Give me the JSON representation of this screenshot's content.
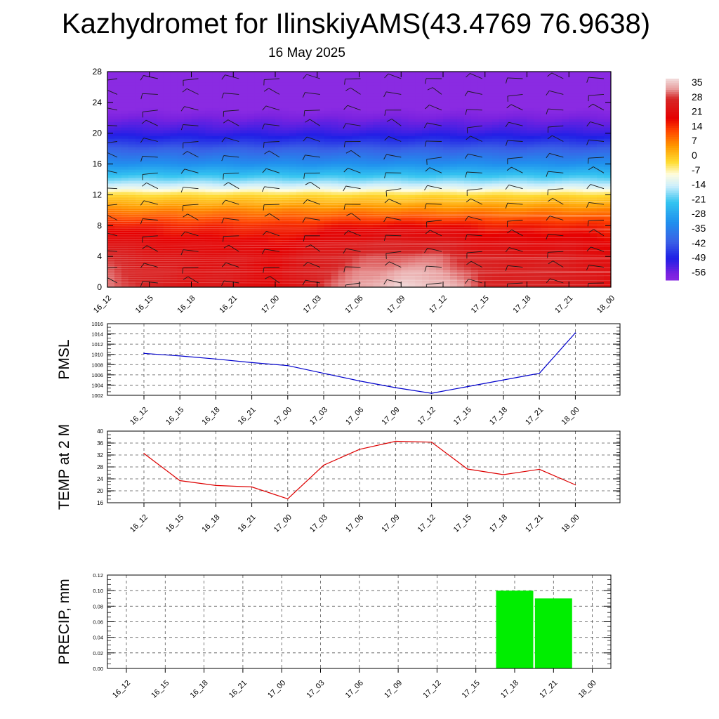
{
  "title": "Kazhydromet for IlinskiyAMS(43.4769 76.9638)",
  "subtitle": "16 May 2025",
  "chart_data": [
    {
      "type": "heatmap",
      "name": "temperature-wind-cross-section",
      "xlabel": "",
      "ylabel": "",
      "x_ticks": [
        "16_12",
        "16_15",
        "16_18",
        "16_21",
        "17_00",
        "17_03",
        "17_06",
        "17_09",
        "17_12",
        "17_15",
        "17_18",
        "17_21",
        "18_00"
      ],
      "y_ticks": [
        0,
        4,
        8,
        12,
        16,
        20,
        24,
        28
      ],
      "ylim": [
        0,
        28
      ],
      "colorbar_labels": [
        35,
        28,
        21,
        14,
        7,
        0,
        -7,
        -14,
        -21,
        -28,
        -35,
        -42,
        -49,
        -56
      ],
      "color_stops": [
        {
          "value": 38,
          "color": "#f2dede"
        },
        {
          "value": 33,
          "color": "#e8a0a0"
        },
        {
          "value": 28,
          "color": "#d62828"
        },
        {
          "value": 18,
          "color": "#e60000"
        },
        {
          "value": 12,
          "color": "#ff4400"
        },
        {
          "value": 4,
          "color": "#ff9900"
        },
        {
          "value": -4,
          "color": "#ffdd33"
        },
        {
          "value": -10,
          "color": "#fffde0"
        },
        {
          "value": -16,
          "color": "#cceefc"
        },
        {
          "value": -24,
          "color": "#33c4f0"
        },
        {
          "value": -34,
          "color": "#2090ee"
        },
        {
          "value": -44,
          "color": "#3a5fe6"
        },
        {
          "value": -52,
          "color": "#1f1fe6"
        },
        {
          "value": -60,
          "color": "#7a22e0"
        },
        {
          "value": -64,
          "color": "#8a2be2"
        }
      ],
      "temperature_at_0": [
        32.5,
        27,
        24,
        24,
        20,
        28,
        34,
        37,
        36.5,
        28,
        27,
        27,
        22
      ],
      "vertical_profile": [
        {
          "level": 0,
          "offset": 0
        },
        {
          "level": 4,
          "offset": -4
        },
        {
          "level": 8,
          "offset": -14
        },
        {
          "level": 12,
          "offset": -34
        },
        {
          "level": 13,
          "offset": -44
        },
        {
          "level": 16,
          "offset": -64
        },
        {
          "level": 20,
          "offset": -84
        },
        {
          "level": 22,
          "offset": -90
        },
        {
          "level": 24,
          "offset": -97
        },
        {
          "level": 28,
          "offset": -97
        }
      ]
    },
    {
      "type": "line",
      "name": "pmsl",
      "ylabel": "PMSL",
      "categories": [
        "16_12",
        "16_15",
        "16_18",
        "16_21",
        "17_00",
        "17_03",
        "17_06",
        "17_09",
        "17_12",
        "17_15",
        "17_18",
        "17_21",
        "18_00"
      ],
      "values": [
        1010.2,
        1009.7,
        1009.1,
        1008.4,
        1007.8,
        1006.3,
        1004.8,
        1003.5,
        1002.4,
        1003.7,
        1005.0,
        1006.3,
        1014.2
      ],
      "ylim": [
        1002,
        1016
      ],
      "y_ticks": [
        1002,
        1004,
        1006,
        1008,
        1010,
        1012,
        1014,
        1016
      ],
      "color": "#0000cc"
    },
    {
      "type": "line",
      "name": "temp-2m",
      "ylabel": "TEMP at 2 M",
      "categories": [
        "16_12",
        "16_15",
        "16_18",
        "16_21",
        "17_00",
        "17_03",
        "17_06",
        "17_09",
        "17_12",
        "17_15",
        "17_18",
        "17_21",
        "18_00"
      ],
      "values": [
        32.5,
        23.4,
        21.8,
        21.3,
        17.3,
        28.6,
        33.9,
        36.6,
        36.3,
        27.3,
        25.4,
        27.2,
        22.0
      ],
      "ylim": [
        16,
        40
      ],
      "y_ticks": [
        16,
        20,
        24,
        28,
        32,
        36,
        40
      ],
      "color": "#dd0000"
    },
    {
      "type": "bar",
      "name": "precip",
      "ylabel": "PRECIP, mm",
      "categories": [
        "16_12",
        "16_15",
        "16_18",
        "16_21",
        "17_00",
        "17_03",
        "17_06",
        "17_09",
        "17_12",
        "17_15",
        "17_18",
        "17_21",
        "18_00"
      ],
      "values": [
        0,
        0,
        0,
        0,
        0,
        0,
        0,
        0,
        0,
        0,
        0.1,
        0.09,
        0
      ],
      "ylim": [
        0,
        0.12
      ],
      "y_ticks": [
        "0.00",
        "0.02",
        "0.04",
        "0.06",
        "0.08",
        "0.10",
        "0.12"
      ],
      "color": "#00ee00"
    }
  ]
}
